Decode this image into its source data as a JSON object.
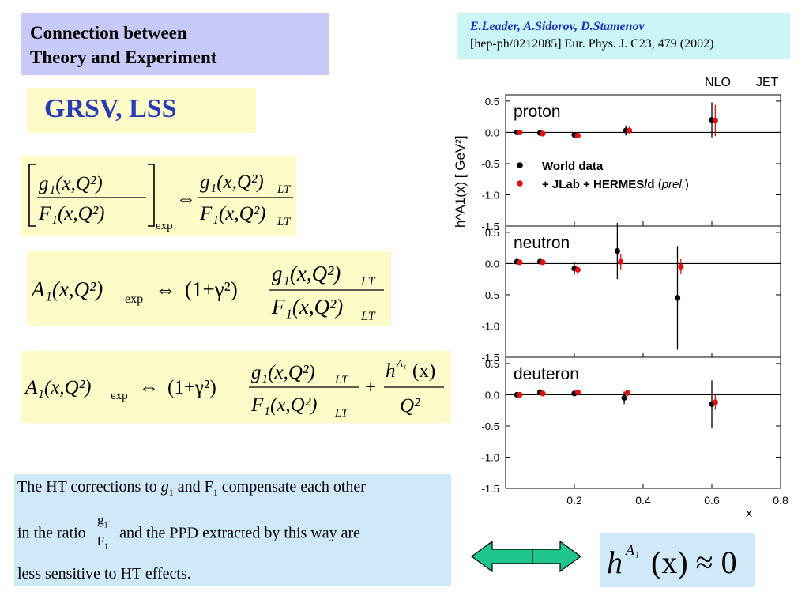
{
  "title": {
    "line1": "Connection between",
    "line2": "Theory and Experiment"
  },
  "reference": {
    "authors": "E.Leader, A.Sidorov, D.Stamenov",
    "citation": "[hep-ph/0212085] Eur. Phys. J. C23, 479 (2002)"
  },
  "models": "GRSV, LSS",
  "equations": {
    "eq1": {
      "num_left": "g₁(x,Q²)",
      "den_left": "F₁(x,Q²)",
      "sub_left": "exp",
      "arrow": "⇔",
      "num_right": "g₁(x,Q²)",
      "num_right_sub": "LT",
      "den_right": "F₁(x,Q²)",
      "den_right_sub": "LT"
    },
    "eq2": {
      "lhs": "A₁(x,Q²)",
      "lhs_sub": "exp",
      "arrow": "⇔",
      "factor": "(1+γ²)",
      "num": "g₁(x,Q²)",
      "num_sub": "LT",
      "den": "F₁(x,Q²)",
      "den_sub": "LT"
    },
    "eq3": {
      "lhs": "A₁(x,Q²)",
      "lhs_sub": "exp",
      "arrow": "⇔",
      "factor": "(1+γ²)",
      "num": "g₁(x,Q²)",
      "num_sub": "LT",
      "den": "F₁(x,Q²)",
      "den_sub": "LT",
      "plus": "+",
      "ht_num": "h",
      "ht_num_sup": "A₁",
      "ht_num_arg": "(x)",
      "ht_den": "Q²"
    }
  },
  "ht_note": {
    "part1": "The HT corrections to",
    "g1": "g",
    "g1_sub": "1",
    "and": "and F",
    "f1_sub": "1",
    "part2": "compensate each other",
    "line2_a": "in the ratio",
    "ratio_num": "g",
    "ratio_num_sub": "1",
    "ratio_den": "F",
    "ratio_den_sub": "1",
    "line2_b": "and the PPD  extracted by this way are",
    "line3": "less sensitive to HT effects."
  },
  "result": {
    "h": "h",
    "sup": "A₁",
    "rest": "(x) ≈ 0"
  },
  "colors": {
    "title_bg": "#c9c9f7",
    "ref_bg": "#ccf5f7",
    "yellow_bg": "#fdfbc8",
    "blue_bg": "#cfe9f9",
    "arrow_fill": "#1fc68c",
    "world": "#000000",
    "jlab": "#e01010",
    "accent_text": "#2a39b6"
  },
  "chart_data": {
    "type": "scatter",
    "top_labels": [
      "NLO",
      "JET"
    ],
    "ylabel": "h^A1(x)  [ GeV²]",
    "xlabel": "x",
    "xlim": [
      0,
      0.8
    ],
    "x_ticks": [
      "0.2",
      "0.4",
      "0.6",
      "0.8"
    ],
    "y_ticks": [
      "0.5",
      "0.0",
      "-0.5",
      "-1.0",
      "-1.5"
    ],
    "ylim": [
      -1.5,
      0.6
    ],
    "legend": {
      "world": "World data",
      "jlab": "+ JLab + HERMES/d",
      "jlab_prel": "prel."
    },
    "panels": [
      {
        "name": "proton",
        "world": [
          {
            "x": 0.033,
            "y": 0.0,
            "err": 0.02
          },
          {
            "x": 0.1,
            "y": -0.01,
            "err": 0.02
          },
          {
            "x": 0.2,
            "y": -0.04,
            "err": 0.04
          },
          {
            "x": 0.35,
            "y": 0.03,
            "err": 0.08
          },
          {
            "x": 0.6,
            "y": 0.2,
            "err": 0.28
          }
        ],
        "jlab": [
          {
            "x": 0.041,
            "y": 0.0,
            "err": 0.02
          },
          {
            "x": 0.108,
            "y": -0.02,
            "err": 0.02
          },
          {
            "x": 0.21,
            "y": -0.05,
            "err": 0.03
          },
          {
            "x": 0.36,
            "y": 0.03,
            "err": 0.06
          },
          {
            "x": 0.61,
            "y": 0.19,
            "err": 0.25
          }
        ]
      },
      {
        "name": "neutron",
        "world": [
          {
            "x": 0.033,
            "y": 0.03,
            "err": 0.03
          },
          {
            "x": 0.1,
            "y": 0.03,
            "err": 0.03
          },
          {
            "x": 0.2,
            "y": -0.08,
            "err": 0.1
          },
          {
            "x": 0.325,
            "y": 0.2,
            "err": 0.45
          },
          {
            "x": 0.5,
            "y": -0.55,
            "err": 0.83
          }
        ],
        "jlab": [
          {
            "x": 0.041,
            "y": 0.02,
            "err": 0.03
          },
          {
            "x": 0.108,
            "y": 0.02,
            "err": 0.03
          },
          {
            "x": 0.21,
            "y": -0.1,
            "err": 0.1
          },
          {
            "x": 0.335,
            "y": 0.03,
            "err": 0.13
          },
          {
            "x": 0.51,
            "y": -0.05,
            "err": 0.12
          }
        ]
      },
      {
        "name": "deuteron",
        "world": [
          {
            "x": 0.033,
            "y": 0.0,
            "err": 0.02
          },
          {
            "x": 0.1,
            "y": 0.04,
            "err": 0.03
          },
          {
            "x": 0.2,
            "y": 0.02,
            "err": 0.03
          },
          {
            "x": 0.345,
            "y": -0.05,
            "err": 0.1
          },
          {
            "x": 0.6,
            "y": -0.15,
            "err": 0.38
          }
        ],
        "jlab": [
          {
            "x": 0.041,
            "y": 0.0,
            "err": 0.02
          },
          {
            "x": 0.108,
            "y": 0.02,
            "err": 0.02
          },
          {
            "x": 0.21,
            "y": 0.04,
            "err": 0.03
          },
          {
            "x": 0.355,
            "y": 0.03,
            "err": 0.05
          },
          {
            "x": 0.61,
            "y": -0.12,
            "err": 0.12
          }
        ]
      }
    ]
  }
}
